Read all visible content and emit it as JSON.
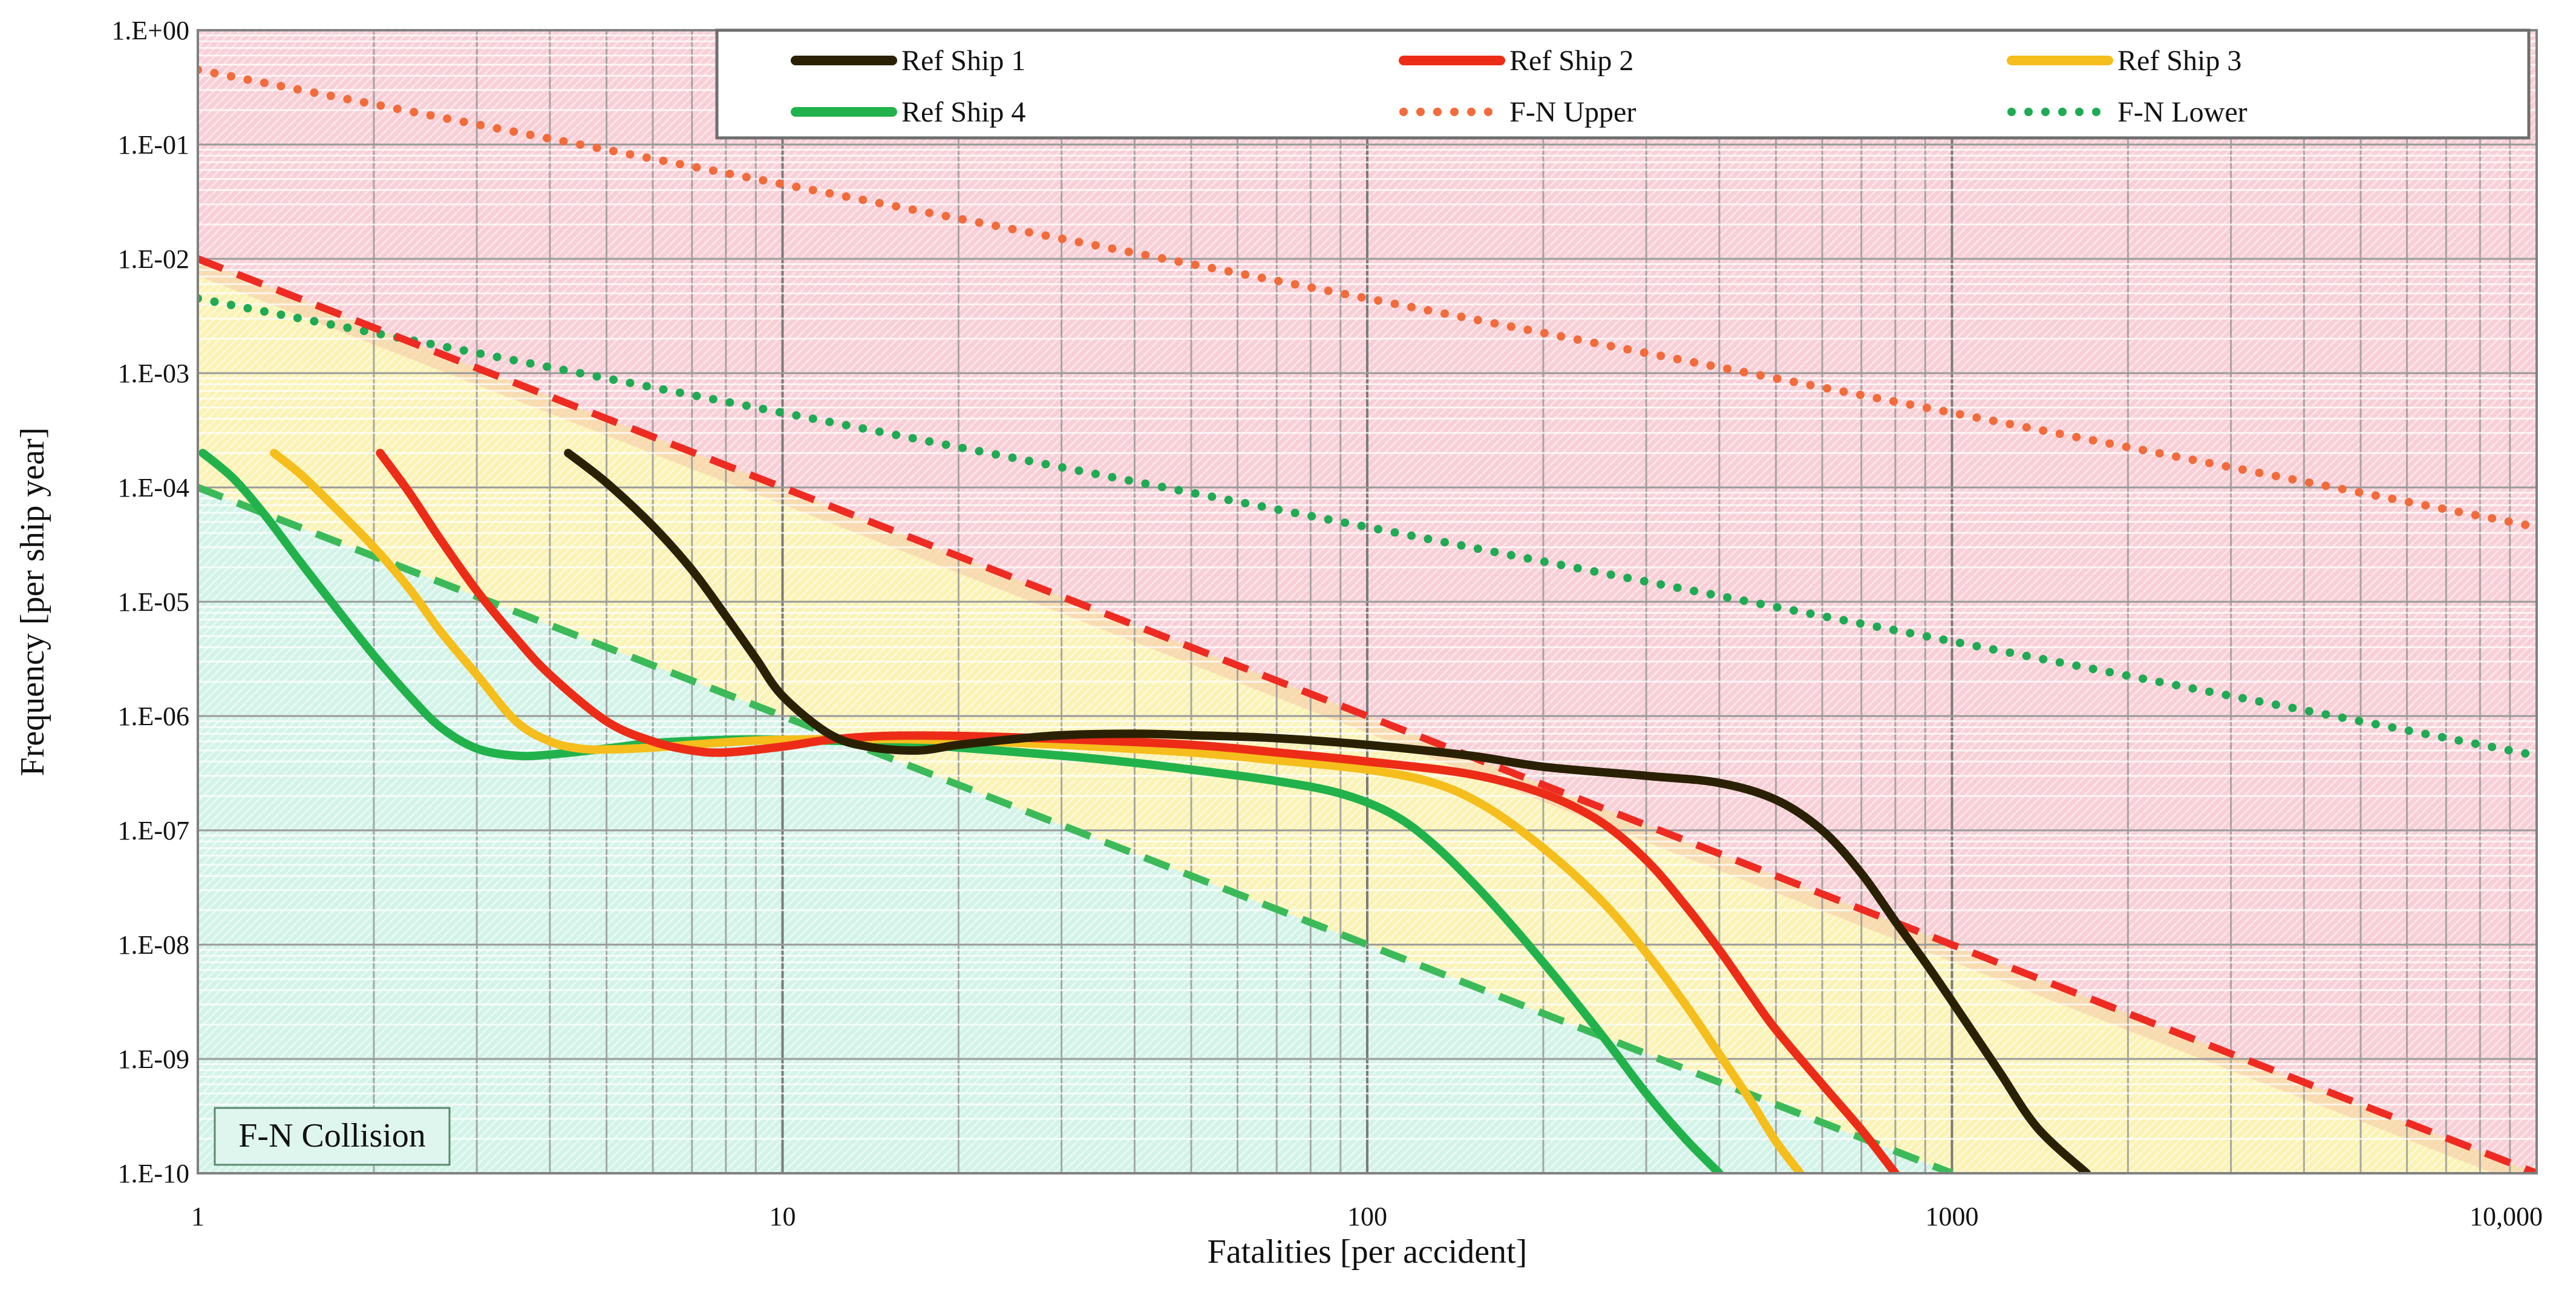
{
  "chart_data": {
    "type": "line",
    "title": "",
    "xlabel": "Fatalities [per accident]",
    "ylabel": "Frequency [per ship year]",
    "x_scale": "log",
    "y_scale": "log",
    "xlim": [
      1,
      10000
    ],
    "ylim": [
      1e-10,
      1
    ],
    "grid": true,
    "legend_position": "top-right",
    "x_ticks": [
      1,
      10,
      100,
      1000,
      10000
    ],
    "x_tick_labels": [
      "1",
      "10",
      "100",
      "1000",
      "10,000"
    ],
    "y_ticks": [
      1,
      0.1,
      0.01,
      0.001,
      0.0001,
      1e-05,
      1e-06,
      1e-07,
      1e-08,
      1e-09,
      1e-10
    ],
    "y_tick_labels": [
      "1.E+00",
      "1.E-01",
      "1.E-02",
      "1.E-03",
      "1.E-04",
      "1.E-05",
      "1.E-06",
      "1.E-07",
      "1.E-08",
      "1.E-09",
      "1.E-10"
    ],
    "annotation": "F-N Collision",
    "regions": [
      {
        "name": "intolerable",
        "color": "#f9d4da"
      },
      {
        "name": "alarp",
        "color": "#fbf5b8"
      },
      {
        "name": "negligible",
        "color": "#d5f4ea"
      }
    ],
    "series": [
      {
        "name": "Ref Ship 1",
        "color": "#2a2105",
        "style": "solid",
        "x": [
          4.3,
          5,
          6,
          7,
          8,
          9,
          10,
          12,
          14,
          17,
          20,
          25,
          30,
          40,
          50,
          70,
          100,
          150,
          200,
          300,
          400,
          500,
          600,
          700,
          800,
          900,
          1000,
          1200,
          1400,
          1700
        ],
        "y": [
          0.0002,
          0.00011,
          4.6e-05,
          1.9e-05,
          7.5e-06,
          3.2e-06,
          1.5e-06,
          7e-07,
          5.4e-07,
          5e-07,
          5.6e-07,
          6.3e-07,
          6.8e-07,
          7e-07,
          6.8e-07,
          6.4e-07,
          5.6e-07,
          4.5e-07,
          3.6e-07,
          3e-07,
          2.6e-07,
          1.85e-07,
          1e-07,
          4.2e-08,
          1.6e-08,
          7e-09,
          3.2e-09,
          8e-10,
          2.5e-10,
          1e-10
        ]
      },
      {
        "name": "Ref Ship 2",
        "color": "#ec2c17",
        "style": "solid",
        "x": [
          2.05,
          2.3,
          2.6,
          3,
          3.5,
          4,
          5,
          6,
          7,
          8,
          10,
          12,
          15,
          20,
          30,
          50,
          70,
          100,
          150,
          200,
          250,
          300,
          350,
          400,
          450,
          500,
          600,
          700,
          800
        ],
        "y": [
          0.0002,
          9e-05,
          3.5e-05,
          1.25e-05,
          4.8e-06,
          2.3e-06,
          9e-07,
          6e-07,
          5e-07,
          4.8e-07,
          5.4e-07,
          6.2e-07,
          6.7e-07,
          6.7e-07,
          6.3e-07,
          5.6e-07,
          4.8e-07,
          4e-07,
          3.1e-07,
          2.1e-07,
          1.2e-07,
          5.5e-08,
          2.2e-08,
          9e-09,
          3.8e-09,
          1.8e-09,
          6e-10,
          2.4e-10,
          1e-10
        ]
      },
      {
        "name": "Ref Ship 3",
        "color": "#f5be1c",
        "style": "solid",
        "x": [
          1.35,
          1.5,
          1.7,
          2,
          2.3,
          2.6,
          3,
          3.5,
          4,
          4.5,
          5,
          6,
          8,
          10,
          15,
          20,
          30,
          50,
          70,
          100,
          130,
          160,
          200,
          250,
          300,
          350,
          400,
          450,
          500,
          550
        ],
        "y": [
          0.0002,
          0.00013,
          7e-05,
          3e-05,
          1.3e-05,
          5.5e-06,
          2.3e-06,
          9e-07,
          6e-07,
          5.2e-07,
          5.1e-07,
          5.3e-07,
          5.9e-07,
          6.2e-07,
          6.3e-07,
          6.1e-07,
          5.6e-07,
          4.8e-07,
          4.1e-07,
          3.4e-07,
          2.6e-07,
          1.6e-07,
          7e-08,
          2.5e-08,
          8.5e-09,
          3e-09,
          1.1e-09,
          4.5e-10,
          1.9e-10,
          1e-10
        ]
      },
      {
        "name": "Ref Ship 4",
        "color": "#22b24c",
        "style": "solid",
        "x": [
          1.02,
          1.15,
          1.3,
          1.5,
          1.75,
          2,
          2.3,
          2.6,
          3,
          3.5,
          4,
          5,
          6,
          8,
          10,
          15,
          20,
          30,
          40,
          50,
          70,
          90,
          110,
          130,
          160,
          200,
          250,
          300,
          350,
          400
        ],
        "y": [
          0.0002,
          0.00012,
          5.8e-05,
          2.2e-05,
          8e-06,
          3.4e-06,
          1.5e-06,
          8e-07,
          5.2e-07,
          4.5e-07,
          4.6e-07,
          5.2e-07,
          5.8e-07,
          6.2e-07,
          6.2e-07,
          5.9e-07,
          5.3e-07,
          4.5e-07,
          3.9e-07,
          3.4e-07,
          2.7e-07,
          2.1e-07,
          1.4e-07,
          7.5e-08,
          2.6e-08,
          7e-09,
          1.7e-09,
          5e-10,
          2e-10,
          1e-10
        ]
      },
      {
        "name": "F-N Upper",
        "color": "#f26b3a",
        "style": "dotted",
        "x": [
          1,
          10000
        ],
        "y": [
          0.45,
          4.5e-05
        ]
      },
      {
        "name": "F-N Lower",
        "color": "#1faa54",
        "style": "dotted",
        "x": [
          1,
          10000
        ],
        "y": [
          0.0045,
          4.5e-07
        ]
      },
      {
        "name": "",
        "color": "#ee2b22",
        "style": "dashed",
        "x": [
          1,
          10000
        ],
        "y": [
          0.01,
          1e-10
        ]
      },
      {
        "name": "",
        "color": "#3cba5a",
        "style": "dashed",
        "x": [
          1,
          1000
        ],
        "y": [
          0.0001,
          1e-10
        ]
      }
    ]
  }
}
